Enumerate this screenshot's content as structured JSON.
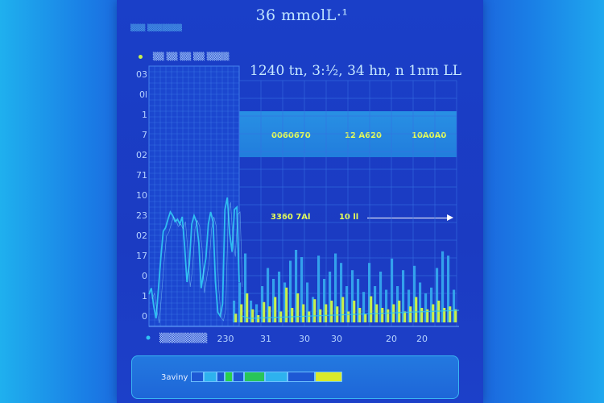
{
  "title": "36 mmolL·¹",
  "small_label": "▒▒▒ ▒▒▒▒▒▒▒",
  "legend_text": "▒▒ ▒▒ ▒▒ ▒▒ ▒▒▒▒",
  "readout": "1240 tn, 3:½, 34 hn, n 1nm LL",
  "band_values": [
    "0060670",
    "12 A620",
    "10A0A0"
  ],
  "arrow_values": [
    "3360 7Al",
    "10 ll"
  ],
  "bottom_label": "3aviny",
  "bottom_date": "▒▒▒▒▒▒▒",
  "colors": {
    "background": "#1d5ad9",
    "panel": "#1a3fc8",
    "cyan": "#31c4f3",
    "lime": "#c8f04a",
    "grid": "#3a78e8"
  },
  "chart_data": {
    "type": "bar",
    "title": "36 mmolL·¹",
    "ytick_labels": [
      "03",
      "0l",
      "1",
      "7",
      "02",
      "71",
      "10",
      "23",
      "02",
      "17",
      "0",
      "1",
      "0"
    ],
    "xtick_labels": [
      "230",
      "31",
      "30",
      "30",
      "20",
      "20"
    ],
    "line_series": {
      "name": "",
      "values": [
        0.2,
        0.25,
        0.1,
        0.0,
        0.25,
        0.5,
        0.72,
        0.75,
        0.82,
        0.88,
        0.85,
        0.8,
        0.82,
        0.78,
        0.84,
        0.6,
        0.3,
        0.45,
        0.78,
        0.85,
        0.8,
        0.62,
        0.25,
        0.38,
        0.5,
        0.78,
        0.88,
        0.8,
        0.3,
        0.05,
        0.02,
        0.12,
        0.9,
        1.0,
        0.7,
        0.55,
        0.9,
        0.92,
        0.3
      ]
    },
    "bar_series": [
      {
        "name": "",
        "color": "#35a6ee",
        "values": [
          0.3,
          0.55,
          0.95,
          0.3,
          0.25,
          0.5,
          0.75,
          0.6,
          0.7,
          0.55,
          0.85,
          1.0,
          0.9,
          0.55,
          0.35,
          0.92,
          0.6,
          0.7,
          0.95,
          0.82,
          0.5,
          0.72,
          0.6,
          0.42,
          0.82,
          0.5,
          0.7,
          0.45,
          0.88,
          0.5,
          0.72,
          0.45,
          0.78,
          0.55,
          0.4,
          0.48,
          0.75,
          0.98,
          0.92,
          0.45
        ]
      },
      {
        "name": "",
        "color": "#c8f04a",
        "values": [
          0.12,
          0.25,
          0.4,
          0.18,
          0.1,
          0.28,
          0.22,
          0.35,
          0.15,
          0.48,
          0.2,
          0.4,
          0.25,
          0.15,
          0.32,
          0.18,
          0.25,
          0.3,
          0.22,
          0.35,
          0.15,
          0.3,
          0.2,
          0.12,
          0.36,
          0.25,
          0.2,
          0.18,
          0.25,
          0.3,
          0.15,
          0.22,
          0.35,
          0.2,
          0.18,
          0.25,
          0.3,
          0.2,
          0.22,
          0.18
        ]
      }
    ],
    "bottom_segments": [
      {
        "color": "#1e58d4",
        "value": 0.08
      },
      {
        "color": "#2eb2ee",
        "value": 0.08
      },
      {
        "color": "#1e58d4",
        "value": 0.05
      },
      {
        "color": "#2ad14a",
        "value": 0.05
      },
      {
        "color": "#1e58d4",
        "value": 0.07
      },
      {
        "color": "#29c55a",
        "value": 0.13
      },
      {
        "color": "#2eb2ee",
        "value": 0.14
      },
      {
        "color": "#1e58d4",
        "value": 0.17
      },
      {
        "color": "#d9ea2a",
        "value": 0.17
      }
    ]
  }
}
